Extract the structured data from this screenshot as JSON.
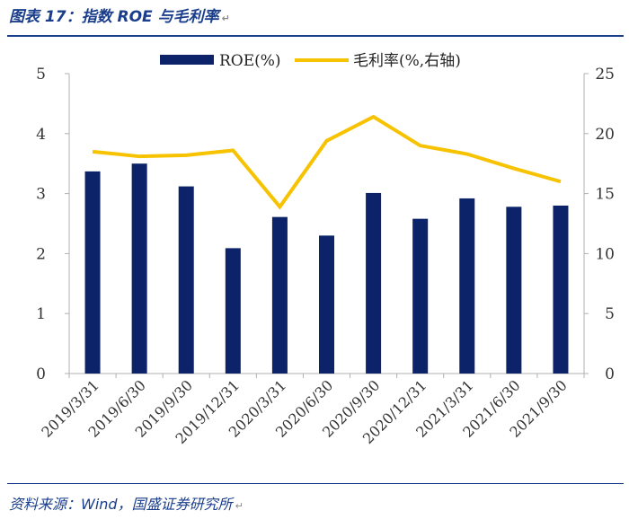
{
  "figure": {
    "title": "图表 17：指数 ROE 与毛利率",
    "source": "资料来源：Wind，国盛证券研究所"
  },
  "chart_data": {
    "type": "bar+line",
    "categories": [
      "2019/3/31",
      "2019/6/30",
      "2019/9/30",
      "2019/12/31",
      "2020/3/31",
      "2020/6/30",
      "2020/9/30",
      "2020/12/31",
      "2021/3/31",
      "2021/6/30",
      "2021/9/30"
    ],
    "series": [
      {
        "name": "ROE(%)",
        "kind": "bar",
        "axis": "left",
        "color": "#0d2369",
        "values": [
          3.37,
          3.5,
          3.12,
          2.09,
          2.61,
          2.3,
          3.01,
          2.58,
          2.92,
          2.78,
          2.8
        ]
      },
      {
        "name": "毛利率(%,右轴)",
        "kind": "line",
        "axis": "right",
        "color": "#f7c200",
        "values": [
          18.5,
          18.1,
          18.2,
          18.6,
          13.9,
          19.4,
          21.4,
          19.0,
          18.3,
          17.1,
          16.0
        ]
      }
    ],
    "left_axis": {
      "min": 0,
      "max": 5,
      "ticks": [
        0,
        1,
        2,
        3,
        4,
        5
      ]
    },
    "right_axis": {
      "min": 0,
      "max": 25,
      "ticks": [
        0,
        5,
        10,
        15,
        20,
        25
      ]
    },
    "legend_position": "top-center",
    "grid": false
  }
}
